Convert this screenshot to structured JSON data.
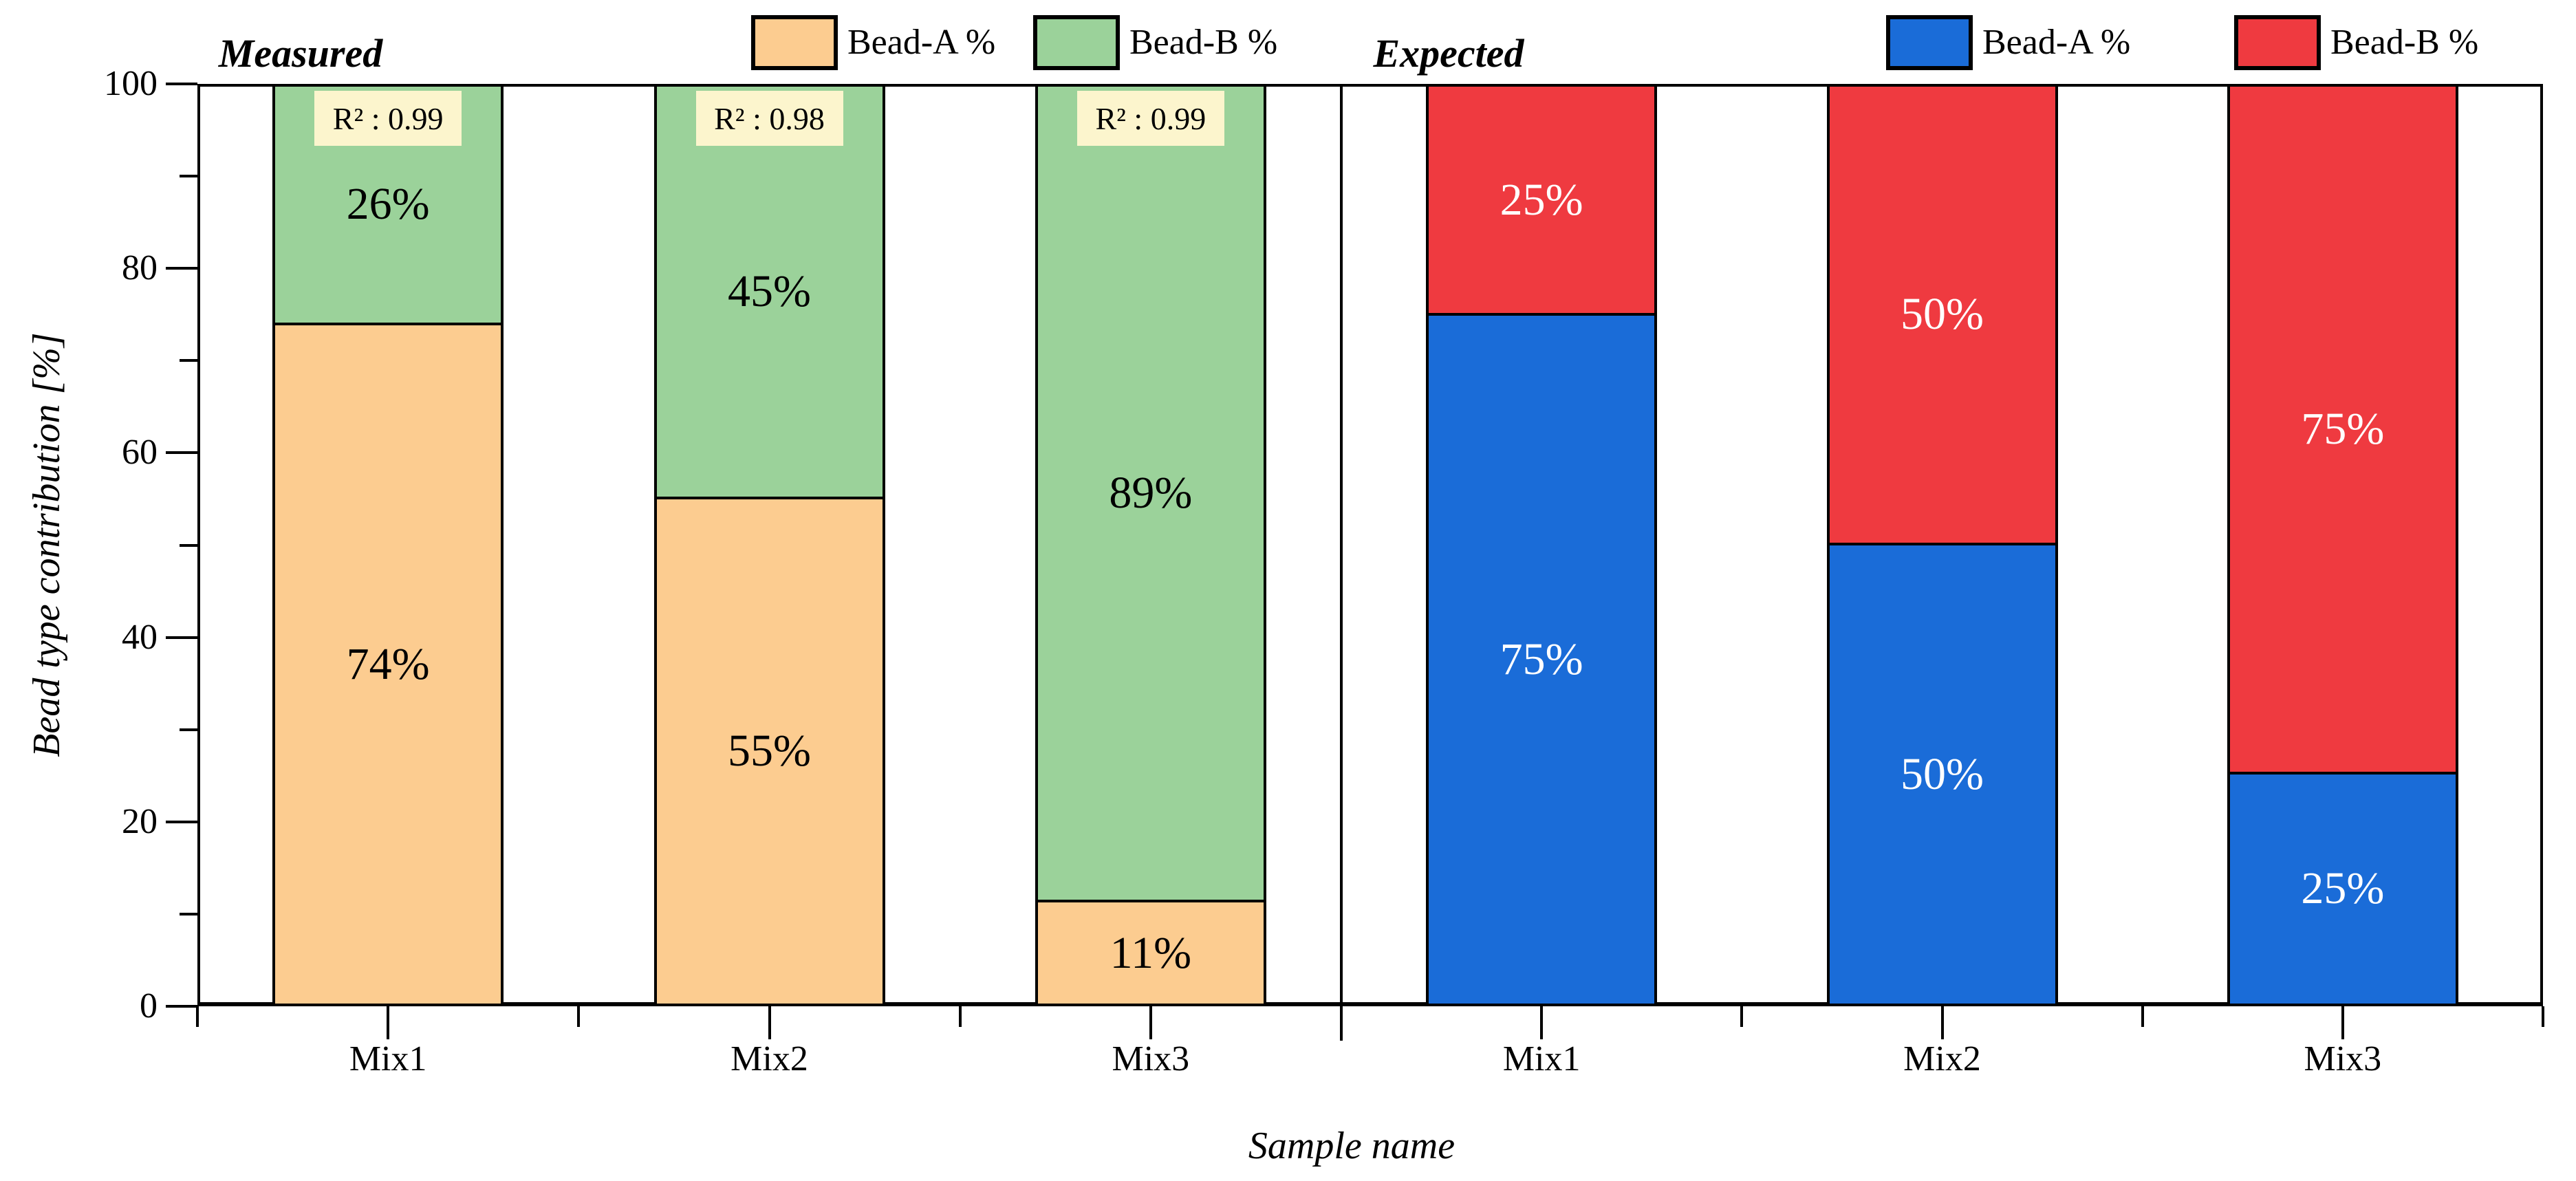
{
  "chart_data": {
    "type": "bar",
    "stacked": true,
    "orientation": "vertical",
    "ylim": [
      0,
      100
    ],
    "yticks_major": [
      0,
      20,
      40,
      60,
      80,
      100
    ],
    "yticks_minor": [
      10,
      30,
      50,
      70,
      90
    ],
    "ylabel": "Bead type contribution [%]",
    "xlabel": "Sample name",
    "grid": false,
    "panels": [
      {
        "title": "Measured",
        "categories": [
          "Mix1",
          "Mix2",
          "Mix3"
        ],
        "series": [
          {
            "name": "Bead-A %",
            "color": "#FCCC90",
            "values": [
              74,
              55,
              11
            ]
          },
          {
            "name": "Bead-B %",
            "color": "#9BD29A",
            "values": [
              26,
              45,
              89
            ]
          }
        ],
        "annotations": [
          {
            "category": "Mix1",
            "text": "R² : 0.99"
          },
          {
            "category": "Mix2",
            "text": "R² : 0.98"
          },
          {
            "category": "Mix3",
            "text": "R² : 0.99"
          }
        ],
        "annotation_bg": "#FCF5CD",
        "value_label_color": "#000000"
      },
      {
        "title": "Expected",
        "categories": [
          "Mix1",
          "Mix2",
          "Mix3"
        ],
        "series": [
          {
            "name": "Bead-A %",
            "color": "#1A6CD8",
            "values": [
              75,
              50,
              25
            ]
          },
          {
            "name": "Bead-B %",
            "color": "#EF3A40",
            "values": [
              25,
              50,
              75
            ]
          }
        ],
        "annotations": [],
        "annotation_bg": "",
        "value_label_color": "#FFFFFF"
      }
    ],
    "legend": {
      "measured": [
        {
          "label": "Bead-A %",
          "color": "#FCCC90"
        },
        {
          "label": "Bead-B %",
          "color": "#9BD29A"
        }
      ],
      "expected": [
        {
          "label": "Bead-A %",
          "color": "#1A6CD8"
        },
        {
          "label": "Bead-B %",
          "color": "#EF3A40"
        }
      ],
      "position": "top"
    },
    "axis_color": "#000000"
  }
}
